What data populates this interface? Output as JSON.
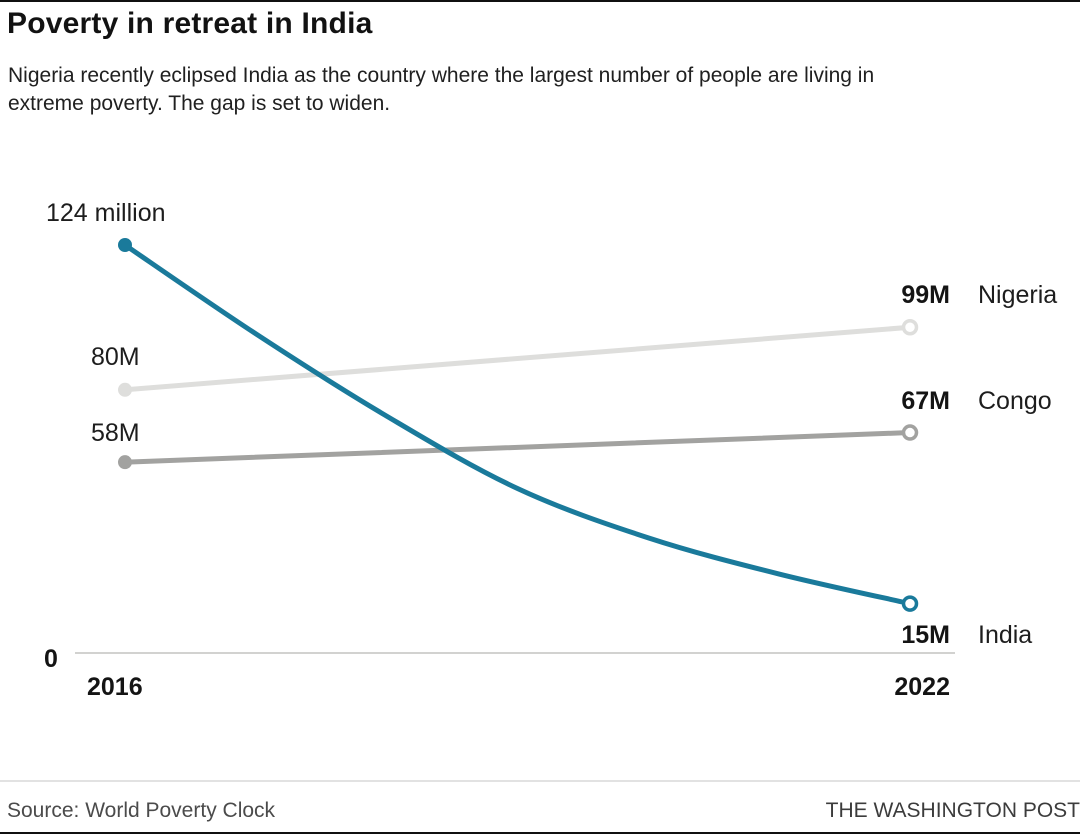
{
  "header": {
    "title": "Poverty in retreat in India",
    "subtitle": "Nigeria recently eclipsed India as the country where the largest number of people are living in extreme poverty. The gap is set to widen."
  },
  "chart_data": {
    "type": "line",
    "title": "Poverty in retreat in India",
    "x_range": [
      2016,
      2022
    ],
    "x_tick_labels": [
      "2016",
      "2022"
    ],
    "ylim": [
      0,
      135
    ],
    "y_baseline_value": 0,
    "y_baseline_label": "0",
    "grid": false,
    "legend_position": "right-inline",
    "series": [
      {
        "name": "India",
        "color": "#1a7a9b",
        "years": [
          2016,
          2017,
          2018,
          2019,
          2020,
          2021,
          2022
        ],
        "values": [
          124,
          97,
          72,
          50,
          35,
          24,
          15
        ],
        "start_value": 124,
        "end_value": 15,
        "start_label": "124 million",
        "end_value_label": "15M",
        "end_name_label": "India"
      },
      {
        "name": "Nigeria",
        "color": "#dededc",
        "years": [
          2016,
          2022
        ],
        "values": [
          80,
          99
        ],
        "start_value": 80,
        "end_value": 99,
        "start_label": "80M",
        "end_value_label": "99M",
        "end_name_label": "Nigeria"
      },
      {
        "name": "Congo",
        "color": "#a2a2a0",
        "years": [
          2016,
          2022
        ],
        "values": [
          58,
          67
        ],
        "start_value": 58,
        "end_value": 67,
        "start_label": "58M",
        "end_value_label": "67M",
        "end_name_label": "Congo"
      }
    ]
  },
  "footer": {
    "source": "Source: World Poverty Clock",
    "credit": "THE WASHINGTON POST"
  }
}
